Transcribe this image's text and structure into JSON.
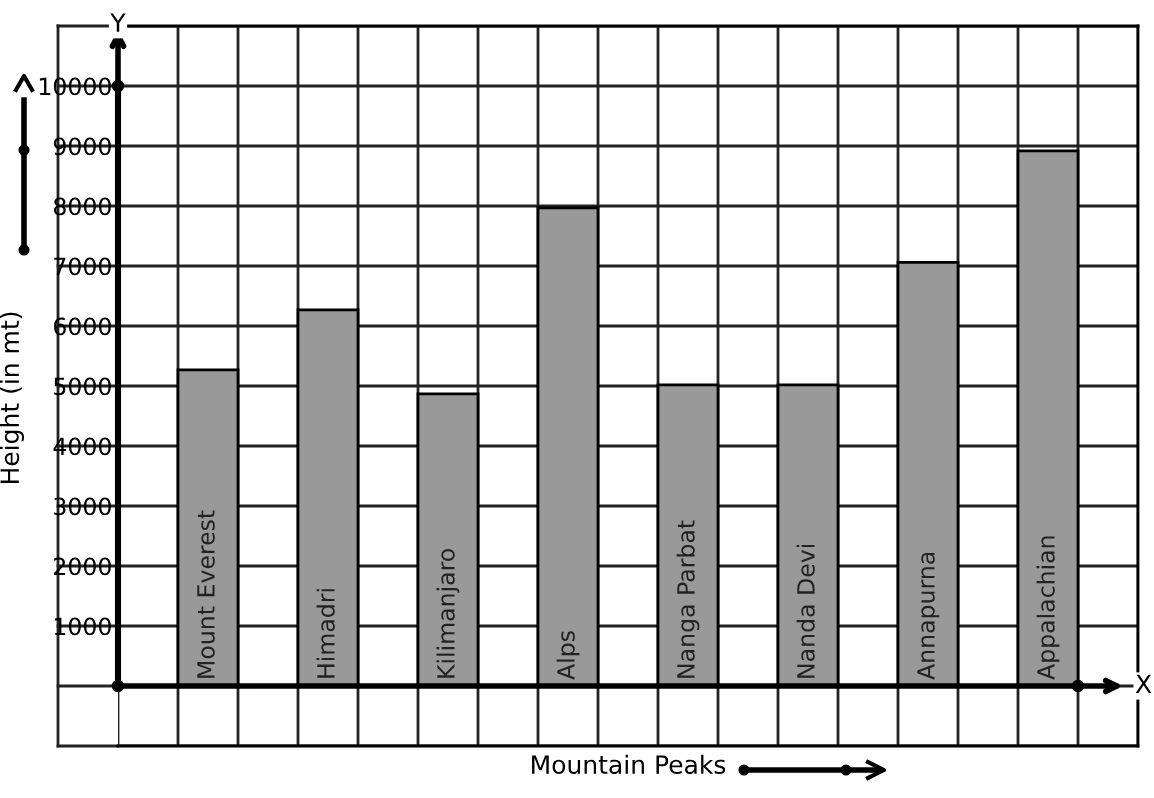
{
  "chart_data": {
    "type": "bar",
    "xlabel": "Mountain Peaks",
    "ylabel": "Height (in mt)",
    "categories": [
      "Mount Everest",
      "Himadri",
      "Kilimanjaro",
      "Alps",
      "Nanga Parbat",
      "Nanda Devi",
      "Annapurna",
      "Appalachian"
    ],
    "values": [
      5270,
      6270,
      4870,
      7970,
      5020,
      5020,
      7060,
      8920
    ],
    "color": "#999999",
    "ylim": [
      -1000,
      11000
    ],
    "yticks": [
      1000,
      2000,
      3000,
      4000,
      5000,
      6000,
      7000,
      8000,
      9000,
      10000
    ],
    "grid": true,
    "annotations": [
      "X",
      "Y"
    ]
  }
}
